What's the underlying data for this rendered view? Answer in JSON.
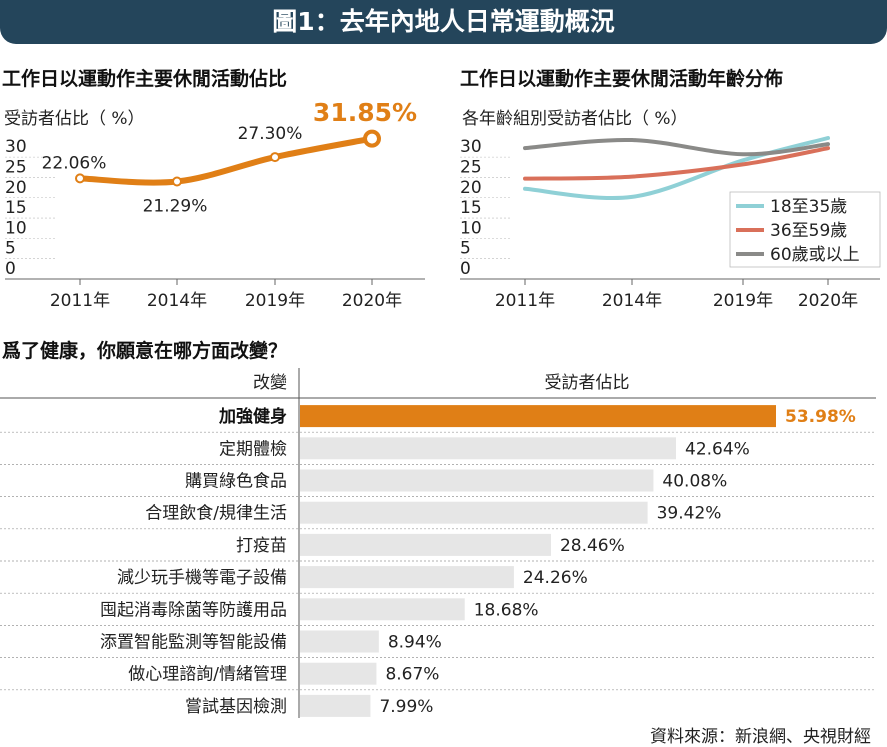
{
  "banner": {
    "title": "圖1：去年內地人日常運動概況"
  },
  "line_chart": {
    "subtitle": "工作日以運動作主要休閒活動佔比",
    "ylabel": "受訪者佔比（ %）",
    "highlight_label": "31.85%",
    "accent_color": "#e07f16"
  },
  "age_chart": {
    "subtitle": "工作日以運動作主要休閒活動年齡分佈",
    "ylabel": "各年齡組別受訪者佔比（ %）"
  },
  "bar_chart": {
    "title": "爲了健康，你願意在哪方面改變？",
    "col_left": "改變",
    "col_right": "受訪者佔比",
    "accent_color": "#e07f16",
    "bar_color": "#e6e6e6"
  },
  "source": "資料來源：新浪網、央視財經",
  "chart_data": [
    {
      "type": "line",
      "title": "工作日以運動作主要休閒活動佔比",
      "ylabel": "受訪者佔比（ %）",
      "categories": [
        "2011年",
        "2014年",
        "2019年",
        "2020年"
      ],
      "values": [
        22.06,
        21.29,
        27.3,
        31.85
      ],
      "value_labels": [
        "22.06%",
        "21.29%",
        "27.30%",
        "31.85%"
      ],
      "yticks": [
        0,
        5,
        10,
        15,
        20,
        25,
        30
      ],
      "ylim": [
        0,
        32
      ],
      "grid": false
    },
    {
      "type": "line",
      "title": "工作日以運動作主要休閒活動年齡分佈",
      "ylabel": "各年齡組別受訪者佔比（ %）",
      "categories": [
        "2011年",
        "2014年",
        "2019年",
        "2020年"
      ],
      "yticks": [
        0,
        5,
        10,
        15,
        20,
        25,
        30
      ],
      "ylim": [
        0,
        32
      ],
      "legend_position": "bottom-right",
      "series": [
        {
          "name": "18至35歲",
          "color": "#8fd0d6",
          "values": [
            19.5,
            17.5,
            26.5,
            32
          ]
        },
        {
          "name": "36至59歲",
          "color": "#d9705a",
          "values": [
            22,
            22.5,
            25.5,
            29.5
          ]
        },
        {
          "name": "60歲或以上",
          "color": "#8a8a88",
          "values": [
            29.5,
            31.5,
            28,
            30.5
          ]
        }
      ]
    },
    {
      "type": "bar",
      "orientation": "horizontal",
      "title": "爲了健康，你願意在哪方面改變？",
      "xlabel": "受訪者佔比",
      "ylabel": "改變",
      "categories": [
        "加強健身",
        "定期體檢",
        "購買綠色食品",
        "合理飲食/規律生活",
        "打疫苗",
        "減少玩手機等電子設備",
        "囤起消毒除菌等防護用品",
        "添置智能監測等智能設備",
        "做心理諮詢/情緒管理",
        "嘗試基因檢測"
      ],
      "values": [
        53.98,
        42.64,
        40.08,
        39.42,
        28.46,
        24.26,
        18.68,
        8.94,
        8.67,
        7.99
      ],
      "value_labels": [
        "53.98%",
        "42.64%",
        "40.08%",
        "39.42%",
        "28.46%",
        "24.26%",
        "18.68%",
        "8.94%",
        "8.67%",
        "7.99%"
      ]
    }
  ]
}
